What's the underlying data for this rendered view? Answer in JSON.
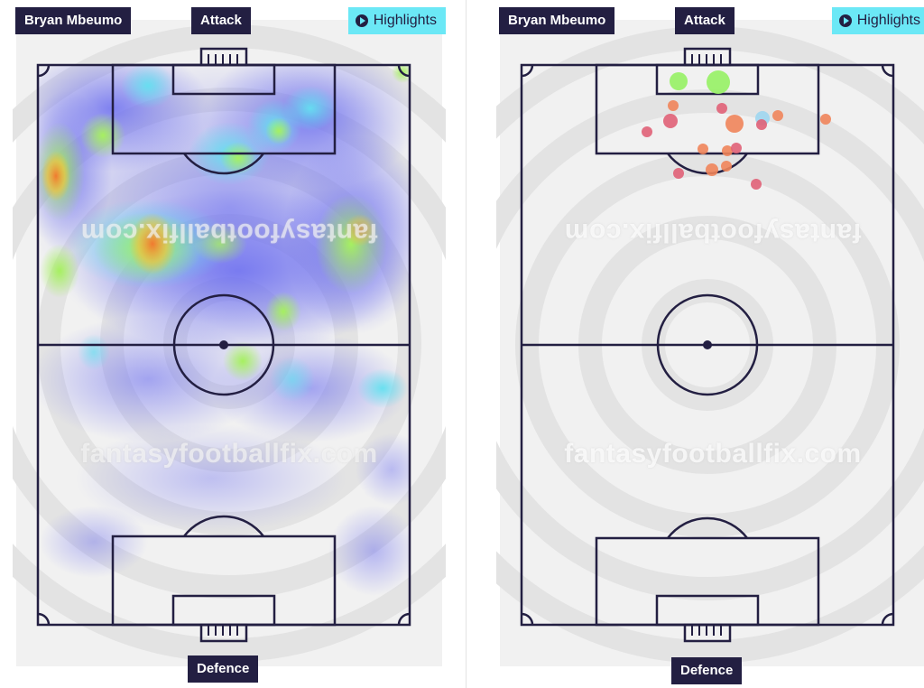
{
  "left_panel": {
    "player_name": "Bryan Mbeumo",
    "attack_label": "Attack",
    "defence_label": "Defence",
    "highlights_label": "Highlights",
    "watermark": "fantasyfootballfix.com"
  },
  "right_panel": {
    "player_name": "Bryan Mbeumo",
    "attack_label": "Attack",
    "defence_label": "Defence",
    "highlights_label": "Highlights",
    "watermark": "fantasyfootballfix.com"
  },
  "colors": {
    "chip_bg": "#231f42",
    "highlights_bg": "#6be8f6",
    "pitch_lines": "#231f42",
    "shot_green": "#9af06a",
    "shot_orange": "#f0845a",
    "shot_pink": "#e06077",
    "shot_blue": "#9fd6f0"
  },
  "icons": {
    "highlights": "play-icon"
  }
}
